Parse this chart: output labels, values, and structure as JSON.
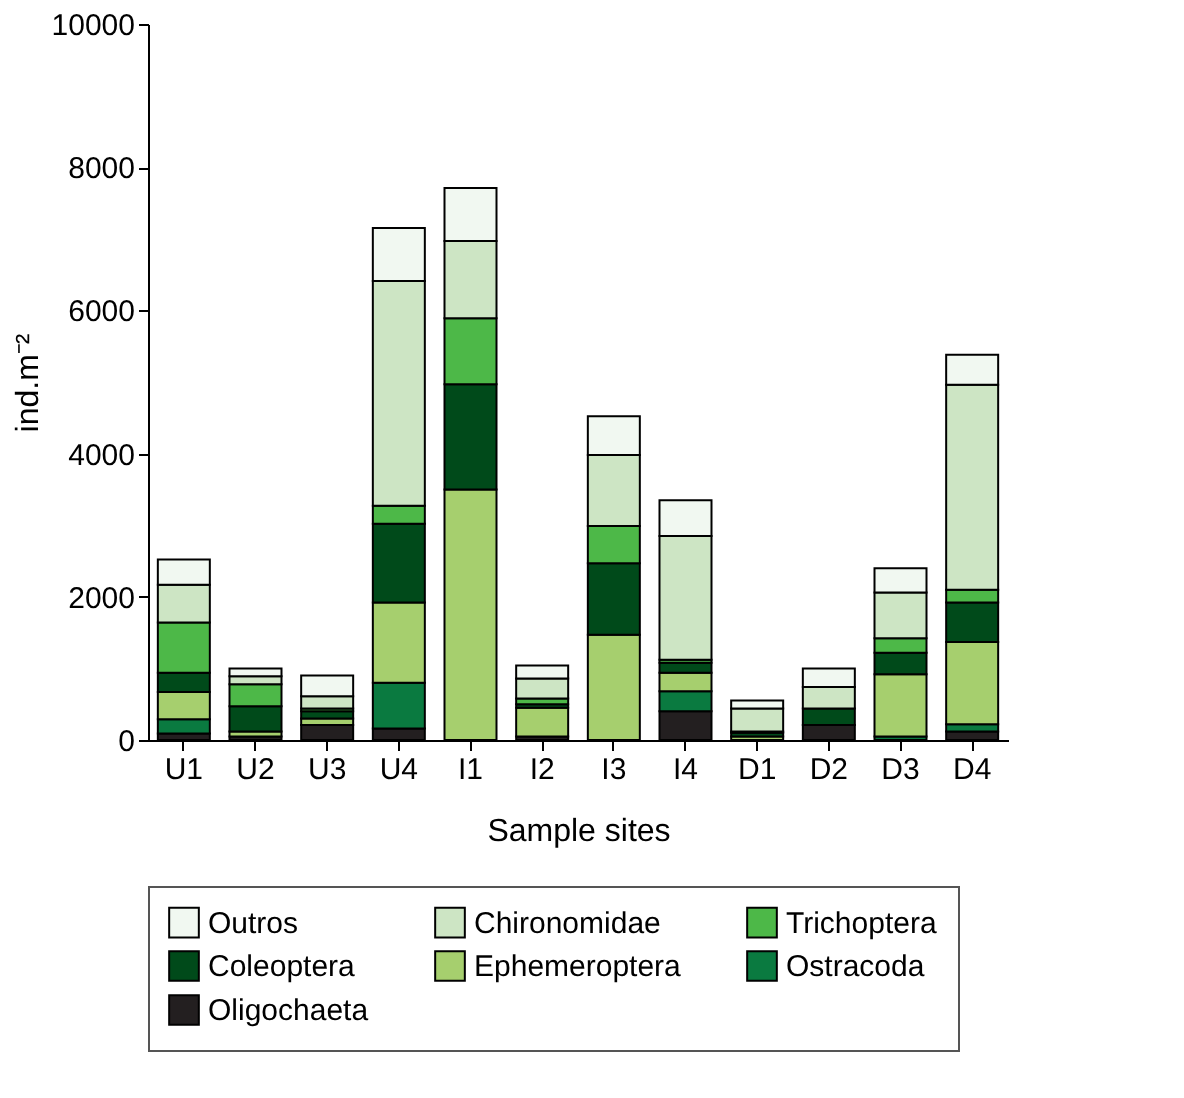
{
  "chart_data": {
    "type": "bar",
    "stacked": true,
    "xlabel": "Sample sites",
    "ylabel": "ind.m⁻²",
    "categories": [
      "U1",
      "U2",
      "U3",
      "U4",
      "I1",
      "I2",
      "I3",
      "I4",
      "D1",
      "D2",
      "D3",
      "D4"
    ],
    "ylim": [
      0,
      10000
    ],
    "yticks": [
      0,
      2000,
      4000,
      6000,
      8000,
      10000
    ],
    "grid": false,
    "legend": "bottom",
    "series": [
      {
        "name": "Oligochaeta",
        "color": "#231f20",
        "values": [
          90,
          50,
          210,
          160,
          0,
          50,
          0,
          400,
          0,
          210,
          0,
          120
        ]
      },
      {
        "name": "Ostracoda",
        "color": "#0a7a40",
        "values": [
          200,
          0,
          0,
          640,
          0,
          0,
          0,
          280,
          0,
          0,
          50,
          100
        ]
      },
      {
        "name": "Ephemeroptera",
        "color": "#a6cf6e",
        "values": [
          380,
          70,
          90,
          1120,
          3500,
          400,
          1470,
          260,
          50,
          0,
          870,
          1150
        ]
      },
      {
        "name": "Coleoptera",
        "color": "#004a1a",
        "values": [
          270,
          350,
          100,
          1100,
          1470,
          50,
          1000,
          140,
          50,
          230,
          300,
          550
        ]
      },
      {
        "name": "Trichoptera",
        "color": "#4db848",
        "values": [
          700,
          310,
          40,
          250,
          920,
          80,
          520,
          40,
          20,
          0,
          200,
          180
        ]
      },
      {
        "name": "Chironomidae",
        "color": "#cde5c4",
        "values": [
          530,
          110,
          170,
          3140,
          1080,
          280,
          990,
          1730,
          320,
          300,
          640,
          2860
        ]
      },
      {
        "name": "Outros",
        "color": "#f1f8f1",
        "values": [
          350,
          110,
          290,
          740,
          740,
          180,
          540,
          500,
          110,
          260,
          340,
          420
        ]
      }
    ]
  }
}
